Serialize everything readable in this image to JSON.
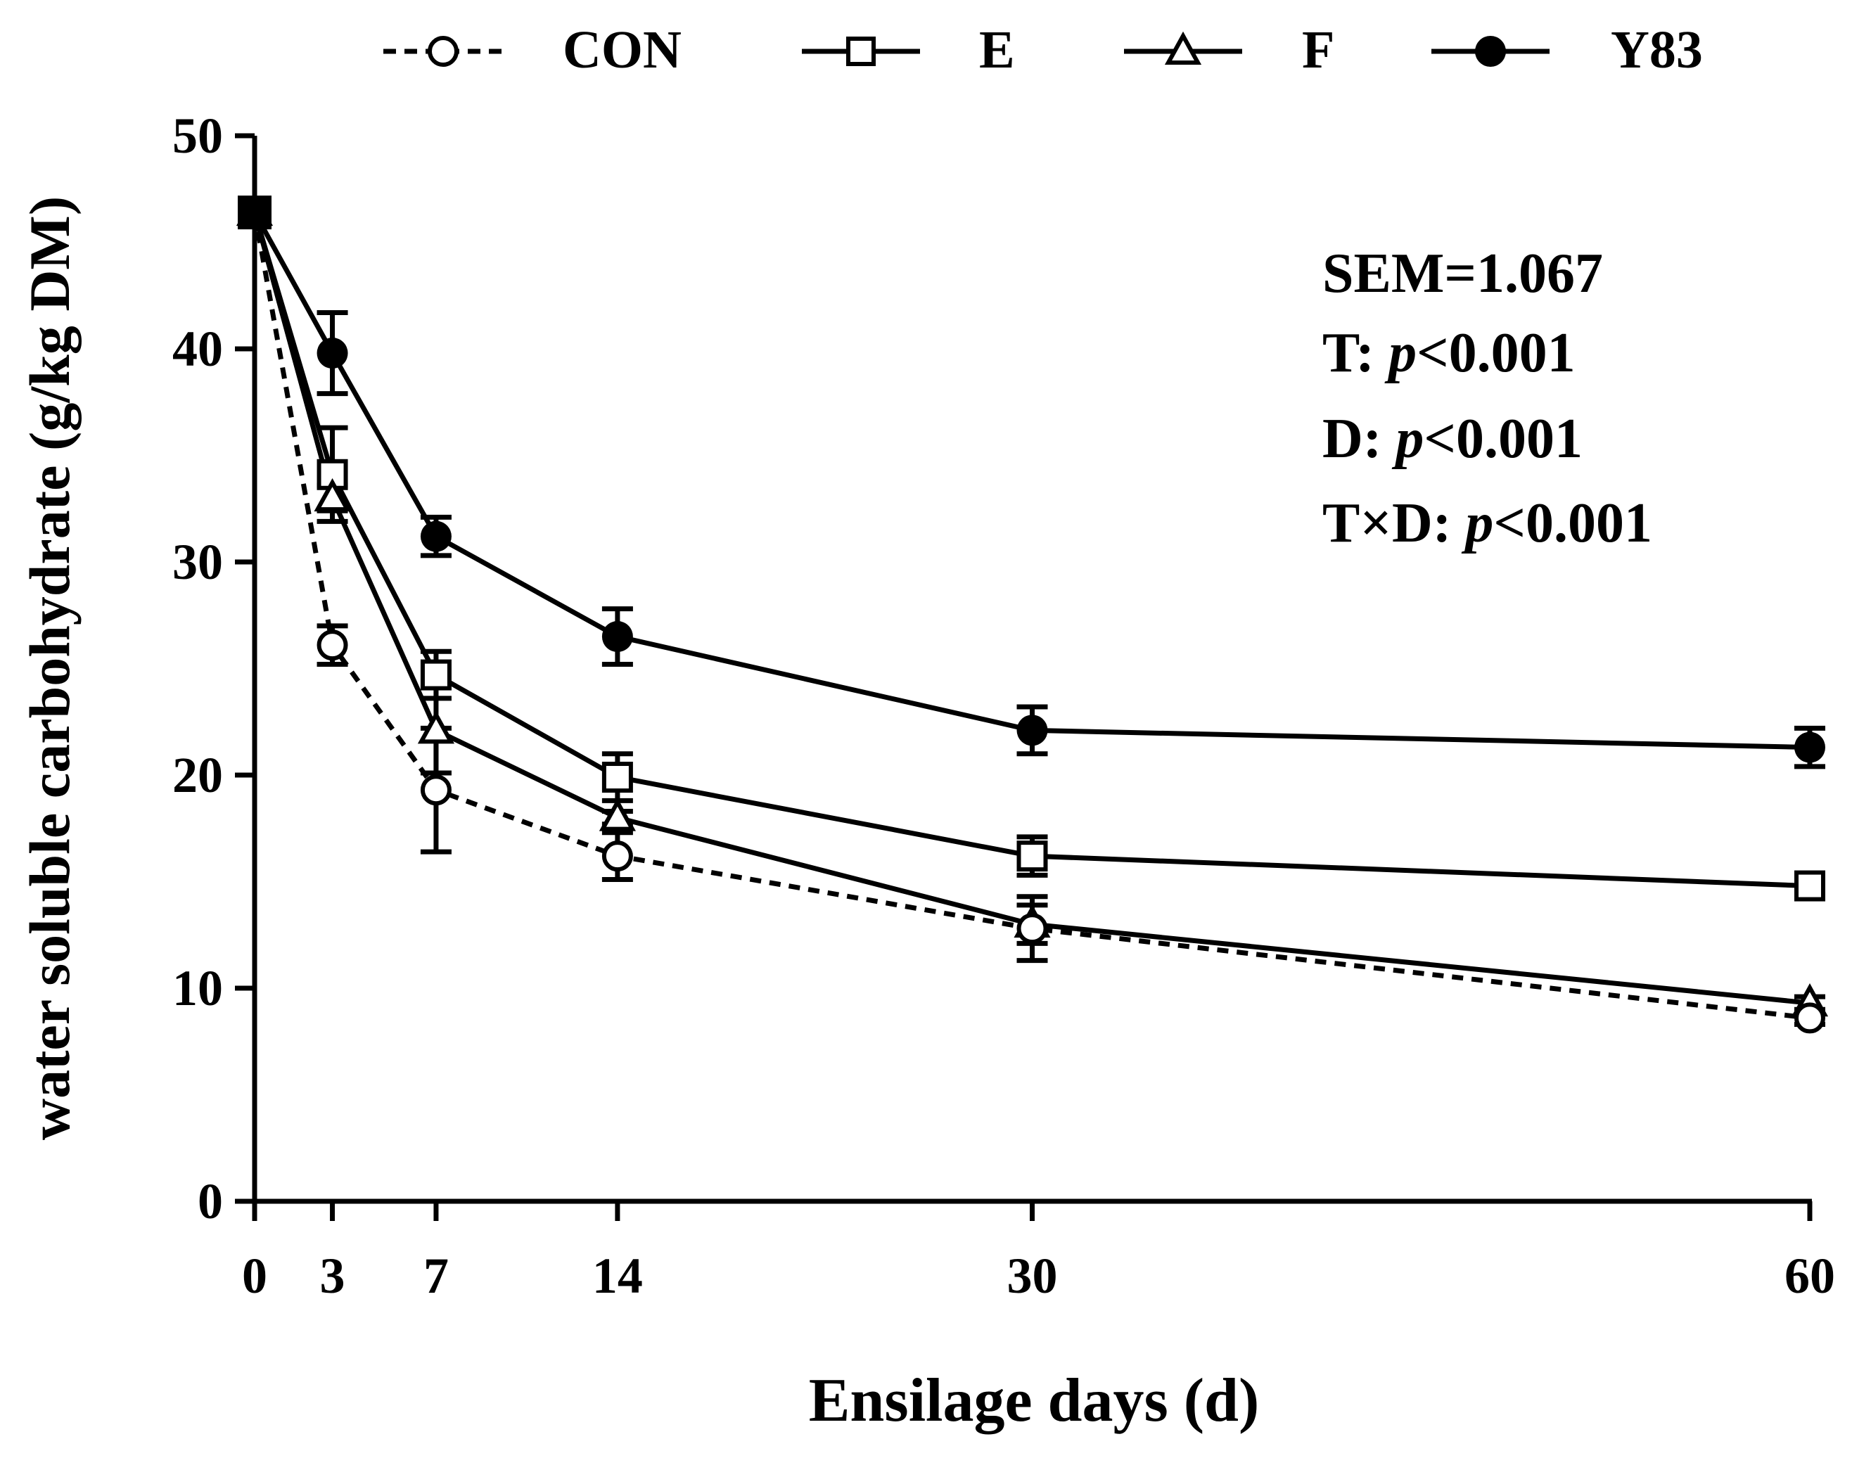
{
  "chart_data": {
    "type": "line",
    "xlabel": "Ensilage days (d)",
    "ylabel": "water soluble carbohydrate (g/kg DM)",
    "xlim": [
      0,
      60
    ],
    "ylim": [
      0,
      50
    ],
    "x_ticks": [
      0,
      3,
      7,
      14,
      30,
      60
    ],
    "y_ticks": [
      0,
      10,
      20,
      30,
      40,
      50
    ],
    "grid": false,
    "legend_position": "top",
    "x": [
      0,
      3,
      7,
      14,
      30,
      60
    ],
    "series": [
      {
        "name": "CON",
        "marker": "open-circle",
        "line": "dashed",
        "values": [
          46.4,
          26.1,
          19.3,
          16.2,
          12.8,
          8.6
        ],
        "errors": [
          0.3,
          0.9,
          2.9,
          1.1,
          1.5,
          0.3
        ]
      },
      {
        "name": "E",
        "marker": "open-square",
        "line": "solid",
        "values": [
          46.4,
          34.1,
          24.7,
          19.9,
          16.2,
          14.8
        ],
        "errors": [
          0.3,
          2.2,
          1.1,
          1.1,
          0.9,
          0.3
        ]
      },
      {
        "name": "F",
        "marker": "open-triangle",
        "line": "solid",
        "values": [
          46.4,
          33.0,
          22.1,
          18.0,
          13.0,
          9.3
        ],
        "errors": [
          0.3,
          0.6,
          2.0,
          0.3,
          0.9,
          0.3
        ]
      },
      {
        "name": "Y83",
        "marker": "filled-circle",
        "line": "solid",
        "values": [
          46.4,
          39.8,
          31.2,
          26.5,
          22.1,
          21.3
        ],
        "errors": [
          0.3,
          1.9,
          0.9,
          1.3,
          1.1,
          0.9
        ]
      }
    ],
    "annotations": {
      "sem": "SEM=1.067",
      "t_prefix": "T: ",
      "t_p": "p",
      "t_value": "<0.001",
      "d_prefix": "D: ",
      "d_p": "p",
      "d_value": "<0.001",
      "td_prefix": "T×D: ",
      "td_p": "p",
      "td_value": "<0.001"
    }
  }
}
